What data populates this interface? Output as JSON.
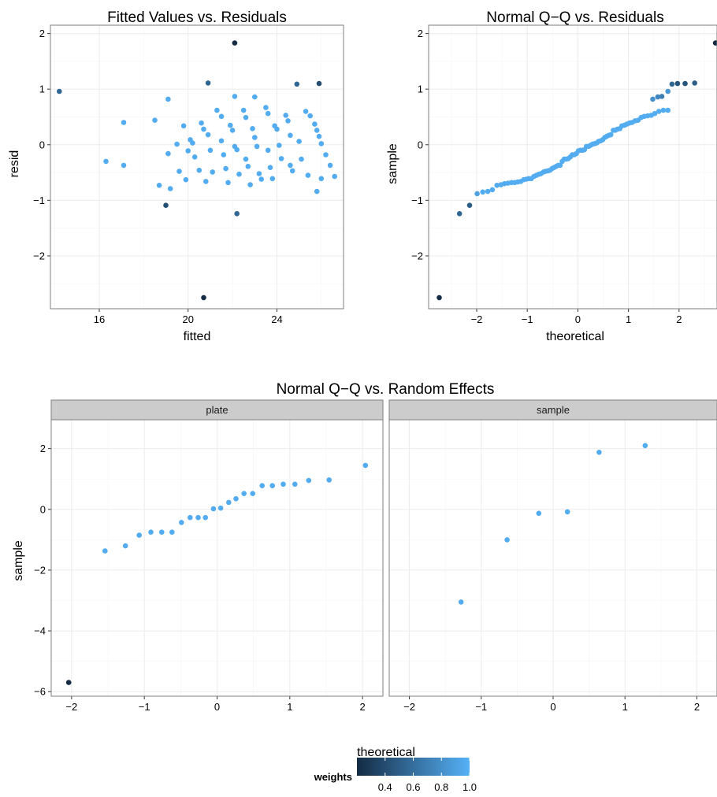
{
  "colors": {
    "low": "#132B43",
    "high": "#56B1F7",
    "grid": "#ebebeb",
    "border": "#7f7f7f",
    "strip_fill": "#cccccc"
  },
  "chart_data": [
    {
      "id": "fitted",
      "type": "scatter",
      "title": "Fitted Values vs. Residuals",
      "xlabel": "fitted",
      "ylabel": "resid",
      "xlim": [
        13.8,
        27.0
      ],
      "ylim": [
        -2.95,
        2.15
      ],
      "xticks": [
        16,
        20,
        24
      ],
      "yticks": [
        -2,
        -1,
        0,
        1,
        2
      ],
      "points": [
        [
          14.2,
          0.96,
          0.55
        ],
        [
          16.3,
          -0.3,
          0.97
        ],
        [
          17.1,
          0.4,
          0.97
        ],
        [
          17.1,
          -0.37,
          0.97
        ],
        [
          18.5,
          0.44,
          0.97
        ],
        [
          18.7,
          -0.73,
          0.97
        ],
        [
          19.0,
          -1.09,
          0.42
        ],
        [
          19.1,
          0.82,
          0.97
        ],
        [
          19.1,
          -0.16,
          0.97
        ],
        [
          19.2,
          -0.79,
          0.97
        ],
        [
          19.5,
          0.01,
          0.97
        ],
        [
          19.6,
          -0.48,
          0.97
        ],
        [
          19.8,
          0.34,
          0.97
        ],
        [
          19.9,
          -0.63,
          0.97
        ],
        [
          20.0,
          -0.11,
          0.97
        ],
        [
          20.1,
          0.09,
          0.97
        ],
        [
          20.2,
          0.03,
          0.97
        ],
        [
          20.3,
          -0.22,
          0.97
        ],
        [
          20.5,
          -0.46,
          0.97
        ],
        [
          20.6,
          0.39,
          0.97
        ],
        [
          20.7,
          0.28,
          0.97
        ],
        [
          20.8,
          -0.66,
          0.97
        ],
        [
          20.7,
          -2.75,
          0.15
        ],
        [
          20.9,
          1.11,
          0.55
        ],
        [
          20.9,
          0.18,
          0.97
        ],
        [
          21.0,
          -0.1,
          0.97
        ],
        [
          21.1,
          -0.49,
          0.97
        ],
        [
          21.3,
          0.62,
          0.97
        ],
        [
          21.5,
          0.51,
          0.97
        ],
        [
          21.5,
          0.07,
          0.97
        ],
        [
          21.6,
          -0.18,
          0.97
        ],
        [
          21.7,
          -0.43,
          0.97
        ],
        [
          21.8,
          -0.68,
          0.97
        ],
        [
          21.9,
          0.35,
          0.97
        ],
        [
          22.0,
          0.26,
          0.97
        ],
        [
          22.1,
          0.87,
          0.97
        ],
        [
          22.1,
          -0.03,
          0.97
        ],
        [
          22.1,
          1.83,
          0.15
        ],
        [
          22.2,
          -0.09,
          0.97
        ],
        [
          22.3,
          -0.53,
          0.97
        ],
        [
          22.2,
          -1.24,
          0.55
        ],
        [
          22.5,
          0.62,
          0.97
        ],
        [
          22.6,
          0.49,
          0.97
        ],
        [
          22.6,
          -0.26,
          0.97
        ],
        [
          22.7,
          -0.39,
          0.97
        ],
        [
          22.8,
          -0.72,
          0.97
        ],
        [
          22.9,
          0.29,
          0.97
        ],
        [
          23.0,
          0.86,
          0.97
        ],
        [
          23.0,
          0.13,
          0.97
        ],
        [
          23.1,
          -0.03,
          0.97
        ],
        [
          23.2,
          -0.52,
          0.97
        ],
        [
          23.3,
          -0.62,
          0.97
        ],
        [
          23.5,
          0.67,
          0.97
        ],
        [
          23.6,
          0.56,
          0.97
        ],
        [
          23.6,
          -0.1,
          0.97
        ],
        [
          23.7,
          -0.41,
          0.97
        ],
        [
          23.8,
          -0.61,
          0.97
        ],
        [
          23.9,
          0.34,
          0.97
        ],
        [
          24.0,
          0.28,
          0.97
        ],
        [
          24.1,
          -0.01,
          0.97
        ],
        [
          24.2,
          -0.25,
          0.97
        ],
        [
          24.4,
          0.53,
          0.97
        ],
        [
          24.5,
          0.43,
          0.97
        ],
        [
          24.6,
          0.17,
          0.97
        ],
        [
          24.6,
          -0.37,
          0.97
        ],
        [
          24.7,
          -0.47,
          0.97
        ],
        [
          24.9,
          1.09,
          0.55
        ],
        [
          25.0,
          0.06,
          0.97
        ],
        [
          25.1,
          -0.26,
          0.97
        ],
        [
          25.3,
          0.6,
          0.97
        ],
        [
          25.4,
          -0.55,
          0.97
        ],
        [
          25.5,
          0.52,
          0.97
        ],
        [
          25.7,
          0.37,
          0.97
        ],
        [
          25.8,
          0.26,
          0.97
        ],
        [
          25.8,
          -0.84,
          0.97
        ],
        [
          25.9,
          0.15,
          0.97
        ],
        [
          26.0,
          0.02,
          0.97
        ],
        [
          25.9,
          1.1,
          0.4
        ],
        [
          26.2,
          -0.18,
          0.97
        ],
        [
          26.4,
          -0.37,
          0.97
        ],
        [
          26.6,
          -0.57,
          0.97
        ],
        [
          26.0,
          -0.61,
          0.97
        ]
      ]
    },
    {
      "id": "qq-resid",
      "type": "scatter",
      "title": "Normal Q−Q vs. Residuals",
      "xlabel": "theoretical",
      "ylabel": "sample",
      "xlim": [
        -2.95,
        2.75
      ],
      "ylim": [
        -2.95,
        2.15
      ],
      "xticks": [
        -2,
        -1,
        0,
        1,
        2
      ],
      "yticks": [
        -2,
        -1,
        0,
        1,
        2
      ],
      "points": [
        [
          -2.74,
          -2.75,
          0.15
        ],
        [
          -2.34,
          -1.24,
          0.55
        ],
        [
          -2.14,
          -1.09,
          0.5
        ],
        [
          -1.99,
          -0.88,
          0.9
        ],
        [
          -1.88,
          -0.85,
          0.97
        ],
        [
          -1.78,
          -0.84,
          0.97
        ],
        [
          -1.69,
          -0.81,
          0.97
        ],
        [
          -1.6,
          -0.73,
          0.97
        ],
        [
          -1.52,
          -0.72,
          0.97
        ],
        [
          -1.45,
          -0.7,
          0.97
        ],
        [
          -1.38,
          -0.69,
          0.97
        ],
        [
          -1.31,
          -0.68,
          0.97
        ],
        [
          -1.25,
          -0.68,
          0.97
        ],
        [
          -1.19,
          -0.67,
          0.97
        ],
        [
          -1.13,
          -0.66,
          0.97
        ],
        [
          -1.07,
          -0.63,
          0.97
        ],
        [
          -1.02,
          -0.62,
          0.97
        ],
        [
          -0.97,
          -0.61,
          0.97
        ],
        [
          -0.92,
          -0.61,
          0.97
        ],
        [
          -0.87,
          -0.57,
          0.97
        ],
        [
          -0.82,
          -0.55,
          0.97
        ],
        [
          -0.77,
          -0.53,
          0.97
        ],
        [
          -0.73,
          -0.52,
          0.97
        ],
        [
          -0.68,
          -0.49,
          0.97
        ],
        [
          -0.64,
          -0.48,
          0.97
        ],
        [
          -0.59,
          -0.47,
          0.97
        ],
        [
          -0.55,
          -0.46,
          0.97
        ],
        [
          -0.51,
          -0.43,
          0.97
        ],
        [
          -0.47,
          -0.41,
          0.97
        ],
        [
          -0.43,
          -0.39,
          0.97
        ],
        [
          -0.39,
          -0.37,
          0.97
        ],
        [
          -0.35,
          -0.37,
          0.97
        ],
        [
          -0.31,
          -0.3,
          0.97
        ],
        [
          -0.27,
          -0.26,
          0.97
        ],
        [
          -0.23,
          -0.26,
          0.97
        ],
        [
          -0.19,
          -0.25,
          0.97
        ],
        [
          -0.15,
          -0.22,
          0.97
        ],
        [
          -0.11,
          -0.18,
          0.97
        ],
        [
          -0.07,
          -0.18,
          0.97
        ],
        [
          -0.03,
          -0.16,
          0.97
        ],
        [
          0.01,
          -0.11,
          0.97
        ],
        [
          0.05,
          -0.1,
          0.97
        ],
        [
          0.09,
          -0.1,
          0.97
        ],
        [
          0.13,
          -0.09,
          0.97
        ],
        [
          0.17,
          -0.03,
          0.97
        ],
        [
          0.21,
          -0.03,
          0.97
        ],
        [
          0.25,
          -0.01,
          0.97
        ],
        [
          0.29,
          0.01,
          0.97
        ],
        [
          0.33,
          0.02,
          0.97
        ],
        [
          0.37,
          0.03,
          0.97
        ],
        [
          0.41,
          0.06,
          0.97
        ],
        [
          0.45,
          0.07,
          0.97
        ],
        [
          0.49,
          0.09,
          0.97
        ],
        [
          0.53,
          0.13,
          0.97
        ],
        [
          0.57,
          0.15,
          0.97
        ],
        [
          0.61,
          0.17,
          0.97
        ],
        [
          0.65,
          0.18,
          0.97
        ],
        [
          0.7,
          0.26,
          0.97
        ],
        [
          0.74,
          0.26,
          0.97
        ],
        [
          0.78,
          0.28,
          0.97
        ],
        [
          0.83,
          0.29,
          0.97
        ],
        [
          0.87,
          0.34,
          0.97
        ],
        [
          0.92,
          0.35,
          0.97
        ],
        [
          0.97,
          0.37,
          0.97
        ],
        [
          1.02,
          0.39,
          0.97
        ],
        [
          1.07,
          0.4,
          0.97
        ],
        [
          1.13,
          0.43,
          0.97
        ],
        [
          1.19,
          0.44,
          0.97
        ],
        [
          1.25,
          0.49,
          0.97
        ],
        [
          1.31,
          0.51,
          0.97
        ],
        [
          1.38,
          0.52,
          0.97
        ],
        [
          1.45,
          0.53,
          0.97
        ],
        [
          1.52,
          0.56,
          0.97
        ],
        [
          1.6,
          0.6,
          0.97
        ],
        [
          1.69,
          0.62,
          0.97
        ],
        [
          1.78,
          0.62,
          0.97
        ],
        [
          1.48,
          0.82,
          0.8
        ],
        [
          1.58,
          0.86,
          0.75
        ],
        [
          1.66,
          0.87,
          0.7
        ],
        [
          1.78,
          0.96,
          0.85
        ],
        [
          1.86,
          1.09,
          0.55
        ],
        [
          1.97,
          1.1,
          0.45
        ],
        [
          2.12,
          1.1,
          0.45
        ],
        [
          2.31,
          1.11,
          0.5
        ],
        [
          2.72,
          1.83,
          0.15
        ]
      ]
    },
    {
      "id": "qq-random",
      "type": "scatter",
      "title": "Normal Q−Q vs. Random Effects",
      "xlabel": "theoretical",
      "ylabel": "sample",
      "xlim": [
        -2.28,
        2.28
      ],
      "ylim": [
        -6.15,
        2.95
      ],
      "xticks": [
        -2,
        -1,
        0,
        1,
        2
      ],
      "yticks": [
        -6,
        -4,
        -2,
        0,
        2
      ],
      "panels": [
        {
          "strip": "plate",
          "points": [
            [
              -2.04,
              -5.7,
              0.1
            ],
            [
              -1.54,
              -1.37,
              0.97
            ],
            [
              -1.26,
              -1.2,
              0.97
            ],
            [
              -1.07,
              -0.85,
              0.97
            ],
            [
              -0.91,
              -0.75,
              0.97
            ],
            [
              -0.76,
              -0.75,
              0.97
            ],
            [
              -0.62,
              -0.75,
              0.97
            ],
            [
              -0.49,
              -0.43,
              0.97
            ],
            [
              -0.37,
              -0.27,
              0.97
            ],
            [
              -0.26,
              -0.27,
              0.97
            ],
            [
              -0.16,
              -0.27,
              0.97
            ],
            [
              -0.05,
              0.02,
              0.97
            ],
            [
              0.05,
              0.04,
              0.97
            ],
            [
              0.16,
              0.23,
              0.97
            ],
            [
              0.26,
              0.35,
              0.97
            ],
            [
              0.37,
              0.52,
              0.97
            ],
            [
              0.49,
              0.52,
              0.97
            ],
            [
              0.62,
              0.78,
              0.97
            ],
            [
              0.76,
              0.78,
              0.97
            ],
            [
              0.91,
              0.83,
              0.97
            ],
            [
              1.07,
              0.83,
              0.97
            ],
            [
              1.26,
              0.95,
              0.97
            ],
            [
              1.54,
              0.97,
              0.97
            ],
            [
              2.04,
              1.45,
              0.97
            ]
          ]
        },
        {
          "strip": "sample",
          "points": [
            [
              -1.28,
              -3.05,
              0.97
            ],
            [
              -0.64,
              -1.0,
              0.97
            ],
            [
              -0.2,
              -0.13,
              0.97
            ],
            [
              0.2,
              -0.08,
              0.97
            ],
            [
              0.64,
              1.88,
              0.97
            ],
            [
              1.28,
              2.1,
              0.97
            ]
          ]
        }
      ]
    }
  ],
  "legend": {
    "title": "weights",
    "type": "colorbar",
    "range": [
      0.2,
      1.0
    ],
    "ticks": [
      "0.4",
      "0.6",
      "0.8",
      "1.0"
    ],
    "tick_values": [
      0.4,
      0.6,
      0.8,
      1.0
    ]
  }
}
